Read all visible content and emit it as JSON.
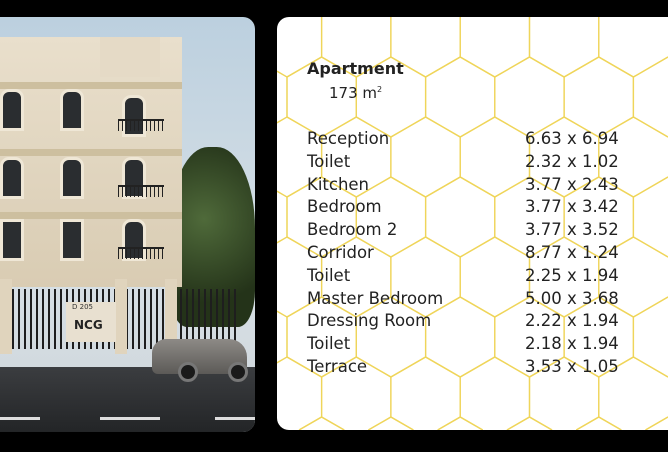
{
  "photo": {
    "sign_text": "D 205",
    "logo_text": "NCG"
  },
  "card": {
    "title": "Apartment",
    "area_value": "173 m",
    "area_sup": "2",
    "pattern_color": "#efd55a",
    "rooms": [
      {
        "name": "Reception",
        "size": "6.63 x 6.94"
      },
      {
        "name": "Toilet",
        "size": "2.32 x 1.02"
      },
      {
        "name": "Kitchen",
        "size": "3.77 x 2.43"
      },
      {
        "name": "Bedroom",
        "size": "3.77 x 3.42"
      },
      {
        "name": "Bedroom 2",
        "size": "3.77 x 3.52"
      },
      {
        "name": "Corridor",
        "size": "8.77 x 1.24"
      },
      {
        "name": "Toilet",
        "size": "2.25 x 1.94"
      },
      {
        "name": "Master Bedroom",
        "size": "5.00 x 3.68"
      },
      {
        "name": "Dressing Room",
        "size": "2.22 x 1.94"
      },
      {
        "name": "Toilet",
        "size": "2.18 x 1.94"
      },
      {
        "name": "Terrace",
        "size": "3.53 x 1.05"
      }
    ]
  }
}
